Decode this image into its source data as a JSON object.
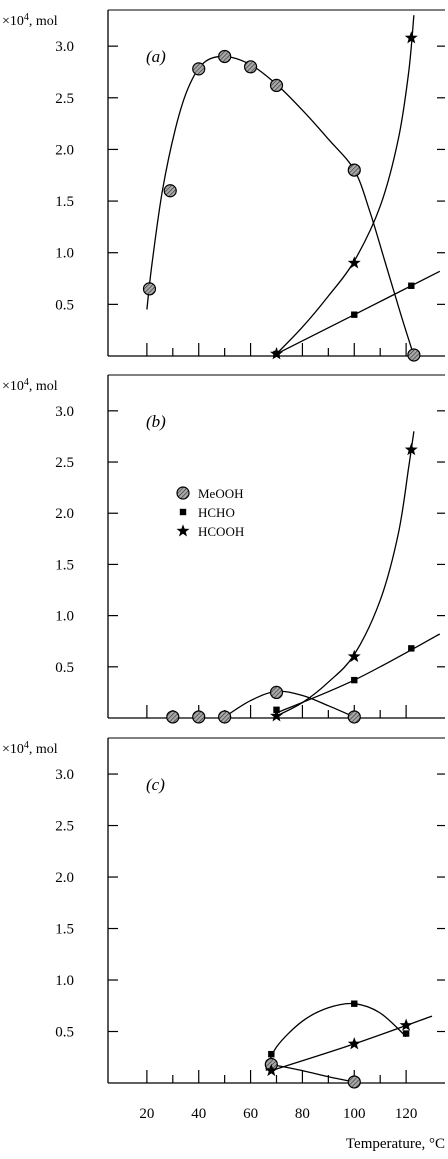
{
  "figure": {
    "x_axis_label": "Temperature, °C",
    "x_tick_labels": [
      "20",
      "40",
      "60",
      "80",
      "100",
      "120"
    ]
  },
  "chart_data": [
    {
      "type": "scatter",
      "panel_label": "(a)",
      "ylabel": "×10⁴, mol",
      "ylabel_main": "×10",
      "ylabel_sup": "4",
      "ylabel_unit": ", mol",
      "xlim": [
        5,
        135
      ],
      "ylim": [
        0,
        3.35
      ],
      "yticks": [
        0.5,
        1.0,
        1.5,
        2.0,
        2.5,
        3.0
      ],
      "ytick_labels": [
        "0.5",
        "1.0",
        "1.5",
        "2.0",
        "2.5",
        "3.0"
      ],
      "xticks": [
        20,
        30,
        40,
        50,
        60,
        70,
        80,
        90,
        100,
        110,
        120
      ],
      "show_x_tick_labels": false,
      "legend": false,
      "series": [
        {
          "name": "MeOOH",
          "marker": "circle",
          "points": [
            [
              21,
              0.65
            ],
            [
              29,
              1.6
            ],
            [
              40,
              2.78
            ],
            [
              50,
              2.9
            ],
            [
              60,
              2.8
            ],
            [
              70,
              2.62
            ],
            [
              100,
              1.8
            ],
            [
              123,
              0.01
            ]
          ],
          "curve": [
            [
              20,
              0.45
            ],
            [
              22,
              0.9
            ],
            [
              26,
              1.6
            ],
            [
              31,
              2.2
            ],
            [
              36,
              2.6
            ],
            [
              42,
              2.84
            ],
            [
              50,
              2.9
            ],
            [
              60,
              2.82
            ],
            [
              70,
              2.63
            ],
            [
              80,
              2.38
            ],
            [
              90,
              2.1
            ],
            [
              100,
              1.8
            ],
            [
              106,
              1.4
            ],
            [
              112,
              0.9
            ],
            [
              118,
              0.4
            ],
            [
              123,
              0.0
            ]
          ]
        },
        {
          "name": "HCHO",
          "marker": "square",
          "points": [
            [
              70,
              0.02
            ],
            [
              100,
              0.4
            ],
            [
              122,
              0.68
            ]
          ],
          "curve": [
            [
              70,
              0.02
            ],
            [
              100,
              0.4
            ],
            [
              133,
              0.82
            ]
          ]
        },
        {
          "name": "HCOOH",
          "marker": "star",
          "points": [
            [
              70,
              0.02
            ],
            [
              100,
              0.9
            ],
            [
              122,
              3.08
            ]
          ],
          "curve": [
            [
              70,
              0.02
            ],
            [
              80,
              0.28
            ],
            [
              90,
              0.58
            ],
            [
              100,
              0.92
            ],
            [
              110,
              1.45
            ],
            [
              117,
              2.1
            ],
            [
              121,
              2.75
            ],
            [
              123,
              3.3
            ]
          ]
        }
      ]
    },
    {
      "type": "scatter",
      "panel_label": "(b)",
      "ylabel": "×10⁴, mol",
      "ylabel_main": "×10",
      "ylabel_sup": "4",
      "ylabel_unit": ", mol",
      "xlim": [
        5,
        135
      ],
      "ylim": [
        0,
        3.35
      ],
      "yticks": [
        0.5,
        1.0,
        1.5,
        2.0,
        2.5,
        3.0
      ],
      "ytick_labels": [
        "0.5",
        "1.0",
        "1.5",
        "2.0",
        "2.5",
        "3.0"
      ],
      "xticks": [
        20,
        30,
        40,
        50,
        60,
        70,
        80,
        90,
        100,
        110,
        120
      ],
      "show_x_tick_labels": false,
      "legend": true,
      "legend_position": "upper-center",
      "series": [
        {
          "name": "MeOOH",
          "marker": "circle",
          "points": [
            [
              30,
              0.01
            ],
            [
              40,
              0.01
            ],
            [
              50,
              0.01
            ],
            [
              70,
              0.25
            ],
            [
              100,
              0.01
            ]
          ],
          "curve": [
            [
              50,
              0.01
            ],
            [
              60,
              0.17
            ],
            [
              70,
              0.26
            ],
            [
              80,
              0.22
            ],
            [
              90,
              0.12
            ],
            [
              100,
              0.01
            ]
          ]
        },
        {
          "name": "HCHO",
          "marker": "square",
          "points": [
            [
              70,
              0.08
            ],
            [
              100,
              0.37
            ],
            [
              122,
              0.68
            ]
          ],
          "curve": [
            [
              70,
              0.05
            ],
            [
              100,
              0.37
            ],
            [
              133,
              0.82
            ]
          ]
        },
        {
          "name": "HCOOH",
          "marker": "star",
          "points": [
            [
              70,
              0.02
            ],
            [
              100,
              0.6
            ],
            [
              122,
              2.62
            ]
          ],
          "curve": [
            [
              70,
              0.02
            ],
            [
              80,
              0.15
            ],
            [
              90,
              0.35
            ],
            [
              100,
              0.62
            ],
            [
              110,
              1.15
            ],
            [
              117,
              1.8
            ],
            [
              121,
              2.45
            ],
            [
              123,
              2.8
            ]
          ]
        }
      ]
    },
    {
      "type": "scatter",
      "panel_label": "(c)",
      "ylabel": "×10⁴, mol",
      "ylabel_main": "×10",
      "ylabel_sup": "4",
      "ylabel_unit": ", mol",
      "xlim": [
        5,
        135
      ],
      "ylim": [
        0,
        3.35
      ],
      "yticks": [
        0.5,
        1.0,
        1.5,
        2.0,
        2.5,
        3.0
      ],
      "ytick_labels": [
        "0.5",
        "1.0",
        "1.5",
        "2.0",
        "2.5",
        "3.0"
      ],
      "xticks": [
        20,
        30,
        40,
        50,
        60,
        70,
        80,
        90,
        100,
        110,
        120
      ],
      "show_x_tick_labels": true,
      "legend": false,
      "series": [
        {
          "name": "MeOOH",
          "marker": "circle",
          "points": [
            [
              68,
              0.18
            ],
            [
              100,
              0.01
            ]
          ],
          "curve": [
            [
              68,
              0.18
            ],
            [
              80,
              0.12
            ],
            [
              92,
              0.05
            ],
            [
              100,
              0.01
            ]
          ]
        },
        {
          "name": "HCHO",
          "marker": "square",
          "points": [
            [
              68,
              0.28
            ],
            [
              100,
              0.77
            ],
            [
              120,
              0.48
            ]
          ],
          "curve": [
            [
              66,
              0.12
            ],
            [
              70,
              0.35
            ],
            [
              80,
              0.6
            ],
            [
              90,
              0.73
            ],
            [
              100,
              0.77
            ],
            [
              110,
              0.68
            ],
            [
              120,
              0.45
            ]
          ]
        },
        {
          "name": "HCOOH",
          "marker": "star",
          "points": [
            [
              68,
              0.12
            ],
            [
              100,
              0.38
            ],
            [
              120,
              0.56
            ]
          ],
          "curve": [
            [
              68,
              0.12
            ],
            [
              100,
              0.38
            ],
            [
              130,
              0.65
            ]
          ]
        }
      ]
    }
  ]
}
